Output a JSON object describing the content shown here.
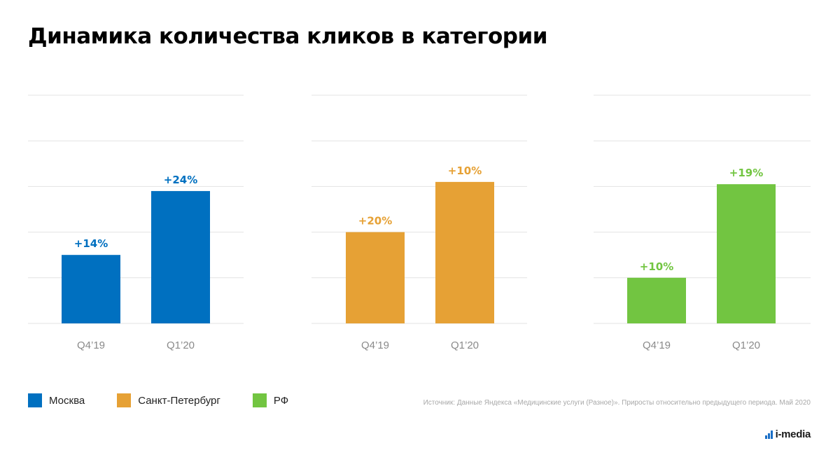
{
  "title": "Динамика количества кликов в категории",
  "chart_data": [
    {
      "type": "bar",
      "categories": [
        "Q4’19",
        "Q1’20"
      ],
      "series": [
        {
          "name": "Москва",
          "values": [
            30,
            58
          ],
          "labels": [
            "+14%",
            "+24%"
          ],
          "color": "#0070c0"
        }
      ],
      "ylim": [
        0,
        100
      ],
      "grid": true,
      "legend": "bottom-left"
    },
    {
      "type": "bar",
      "categories": [
        "Q4’19",
        "Q1’20"
      ],
      "series": [
        {
          "name": "Санкт-Петербург",
          "values": [
            40,
            62
          ],
          "labels": [
            "+20%",
            "+10%"
          ],
          "color": "#e6a135"
        }
      ],
      "ylim": [
        0,
        100
      ],
      "grid": true,
      "legend": "bottom-left"
    },
    {
      "type": "bar",
      "categories": [
        "Q4’19",
        "Q1’20"
      ],
      "series": [
        {
          "name": "РФ",
          "values": [
            20,
            61
          ],
          "labels": [
            "+10%",
            "+19%"
          ],
          "color": "#72c541"
        }
      ],
      "ylim": [
        0,
        100
      ],
      "grid": true,
      "legend": "bottom-left"
    }
  ],
  "legend": [
    {
      "label": "Москва",
      "color": "#0070c0"
    },
    {
      "label": "Санкт-Петербург",
      "color": "#e6a135"
    },
    {
      "label": "РФ",
      "color": "#72c541"
    }
  ],
  "source": "Источник: Данные Яндекса «Медицинские услуги (Разное)». Приросты относительно предыдущего периода. Май 2020",
  "logo_text": "i-media",
  "colors": {
    "grid": "#e3e3e3",
    "tick_label": "#8a8a8a",
    "logo_accent": "#1a6fc7"
  }
}
